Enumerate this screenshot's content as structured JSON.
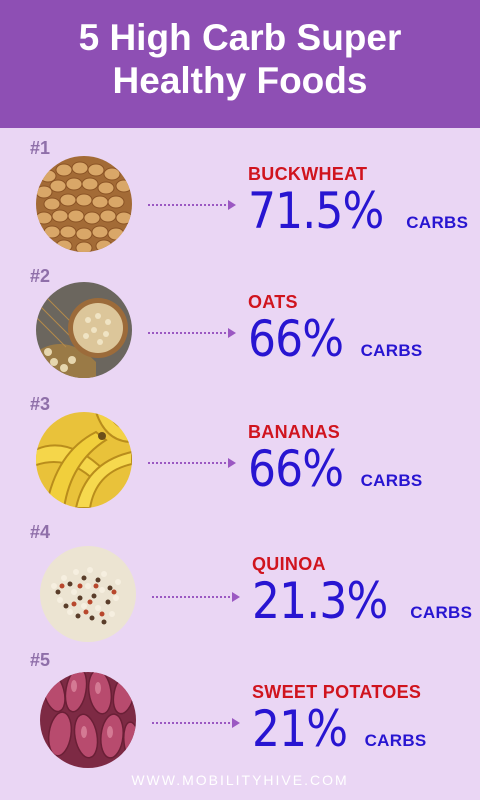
{
  "title_line1": "5 High Carb Super",
  "title_line2": "Healthy Foods",
  "colors": {
    "header": "#8e4fb4",
    "background": "#ead6f4",
    "food_name": "#d0141e",
    "value": "#2815d1",
    "rank": "#8f6fa9",
    "footer": "#ffffff"
  },
  "items": [
    {
      "rank": "#1",
      "name": "BUCKWHEAT",
      "percent": "71.5%",
      "unit": "CARBS",
      "image": "buckwheat-image"
    },
    {
      "rank": "#2",
      "name": "OATS",
      "percent": "66%",
      "unit": "CARBS",
      "image": "oats-image"
    },
    {
      "rank": "#3",
      "name": "BANANAS",
      "percent": "66%",
      "unit": "CARBS",
      "image": "bananas-image"
    },
    {
      "rank": "#4",
      "name": "QUINOA",
      "percent": "21.3%",
      "unit": "CARBS",
      "image": "quinoa-image"
    },
    {
      "rank": "#5",
      "name": "SWEET POTATOES",
      "percent": "21%",
      "unit": "CARBS",
      "image": "sweet-potatoes-image"
    }
  ],
  "footer": "WWW.MOBILITYHIVE.COM"
}
